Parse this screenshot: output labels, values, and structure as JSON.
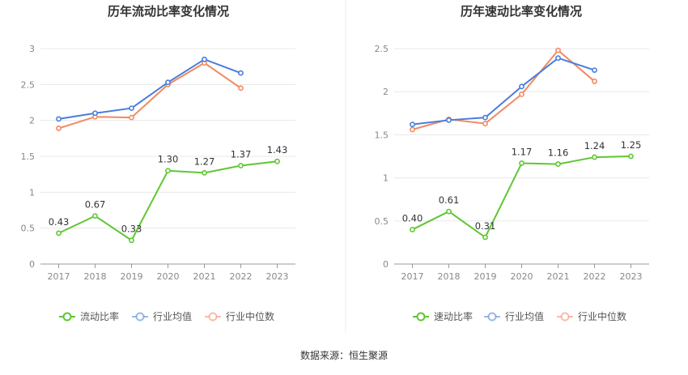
{
  "source": "数据来源：恒生聚源",
  "colors": {
    "company": "#5ec732",
    "avg": "#4a7ddc",
    "median": "#f08a62"
  },
  "chart_data": [
    {
      "type": "line",
      "title": "历年流动比率变化情况",
      "categories": [
        "2017",
        "2018",
        "2019",
        "2020",
        "2021",
        "2022",
        "2023"
      ],
      "ylim": [
        0,
        3
      ],
      "yticks": [
        0,
        0.5,
        1,
        1.5,
        2,
        2.5,
        3
      ],
      "ytick_labels": [
        "0",
        "0.5",
        "1",
        "1.5",
        "2",
        "2.5",
        "3"
      ],
      "grid": true,
      "legend_position": "bottom",
      "series": [
        {
          "name": "流动比率",
          "role": "company",
          "values": [
            0.43,
            0.67,
            0.33,
            1.3,
            1.27,
            1.37,
            1.43
          ],
          "labels": [
            "0.43",
            "0.67",
            "0.33",
            "1.30",
            "1.27",
            "1.37",
            "1.43"
          ]
        },
        {
          "name": "行业均值",
          "role": "avg",
          "values": [
            2.02,
            2.1,
            2.17,
            2.53,
            2.85,
            2.66,
            null
          ]
        },
        {
          "name": "行业中位数",
          "role": "median",
          "values": [
            1.89,
            2.05,
            2.04,
            2.5,
            2.8,
            2.45,
            null
          ]
        }
      ]
    },
    {
      "type": "line",
      "title": "历年速动比率变化情况",
      "categories": [
        "2017",
        "2018",
        "2019",
        "2020",
        "2021",
        "2022",
        "2023"
      ],
      "ylim": [
        0,
        2.5
      ],
      "yticks": [
        0,
        0.5,
        1,
        1.5,
        2,
        2.5
      ],
      "ytick_labels": [
        "0",
        "0.5",
        "1",
        "1.5",
        "2",
        "2.5"
      ],
      "grid": true,
      "legend_position": "bottom",
      "series": [
        {
          "name": "速动比率",
          "role": "company",
          "values": [
            0.4,
            0.61,
            0.31,
            1.17,
            1.16,
            1.24,
            1.25
          ],
          "labels": [
            "0.40",
            "0.61",
            "0.31",
            "1.17",
            "1.16",
            "1.24",
            "1.25"
          ]
        },
        {
          "name": "行业均值",
          "role": "avg",
          "values": [
            1.62,
            1.67,
            1.7,
            2.06,
            2.39,
            2.25,
            null
          ]
        },
        {
          "name": "行业中位数",
          "role": "median",
          "values": [
            1.56,
            1.68,
            1.63,
            1.97,
            2.48,
            2.12,
            null
          ]
        }
      ]
    }
  ]
}
